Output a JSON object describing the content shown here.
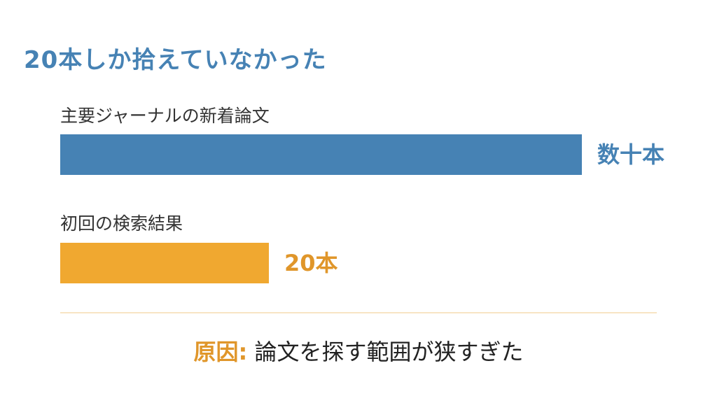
{
  "title": "20本しか拾えていなかった",
  "chart_data": {
    "type": "bar",
    "orientation": "horizontal",
    "categories": [
      "主要ジャーナルの新着論文",
      "初回の検索結果"
    ],
    "values": [
      50,
      20
    ],
    "value_labels": [
      "数十本",
      "20本"
    ],
    "colors": [
      "#4682b4",
      "#f0a830"
    ]
  },
  "cause": {
    "label": "原因:",
    "text": "論文を探す範囲が狭すぎた"
  },
  "colors": {
    "title": "#4682b4",
    "accent": "#e0962a",
    "divider": "#f8e4c4"
  }
}
